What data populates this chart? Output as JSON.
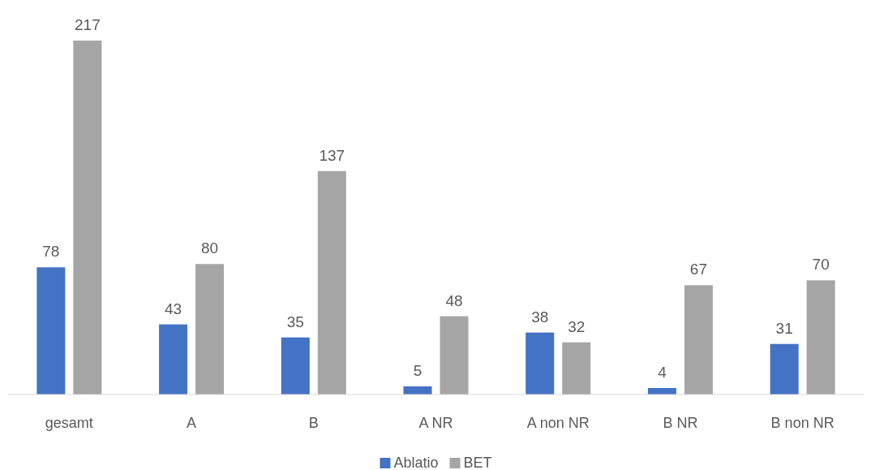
{
  "chart_data": {
    "type": "bar",
    "categories": [
      "gesamt",
      "A",
      "B",
      "A NR",
      "A non NR",
      "B NR",
      "B non NR"
    ],
    "series": [
      {
        "name": "Ablatio",
        "color": "#4472c4",
        "values": [
          78,
          43,
          35,
          5,
          38,
          4,
          31
        ]
      },
      {
        "name": "BET",
        "color": "#a5a5a5",
        "values": [
          217,
          80,
          137,
          48,
          32,
          67,
          70
        ]
      }
    ],
    "data_labels": true,
    "legend": "bottom"
  }
}
